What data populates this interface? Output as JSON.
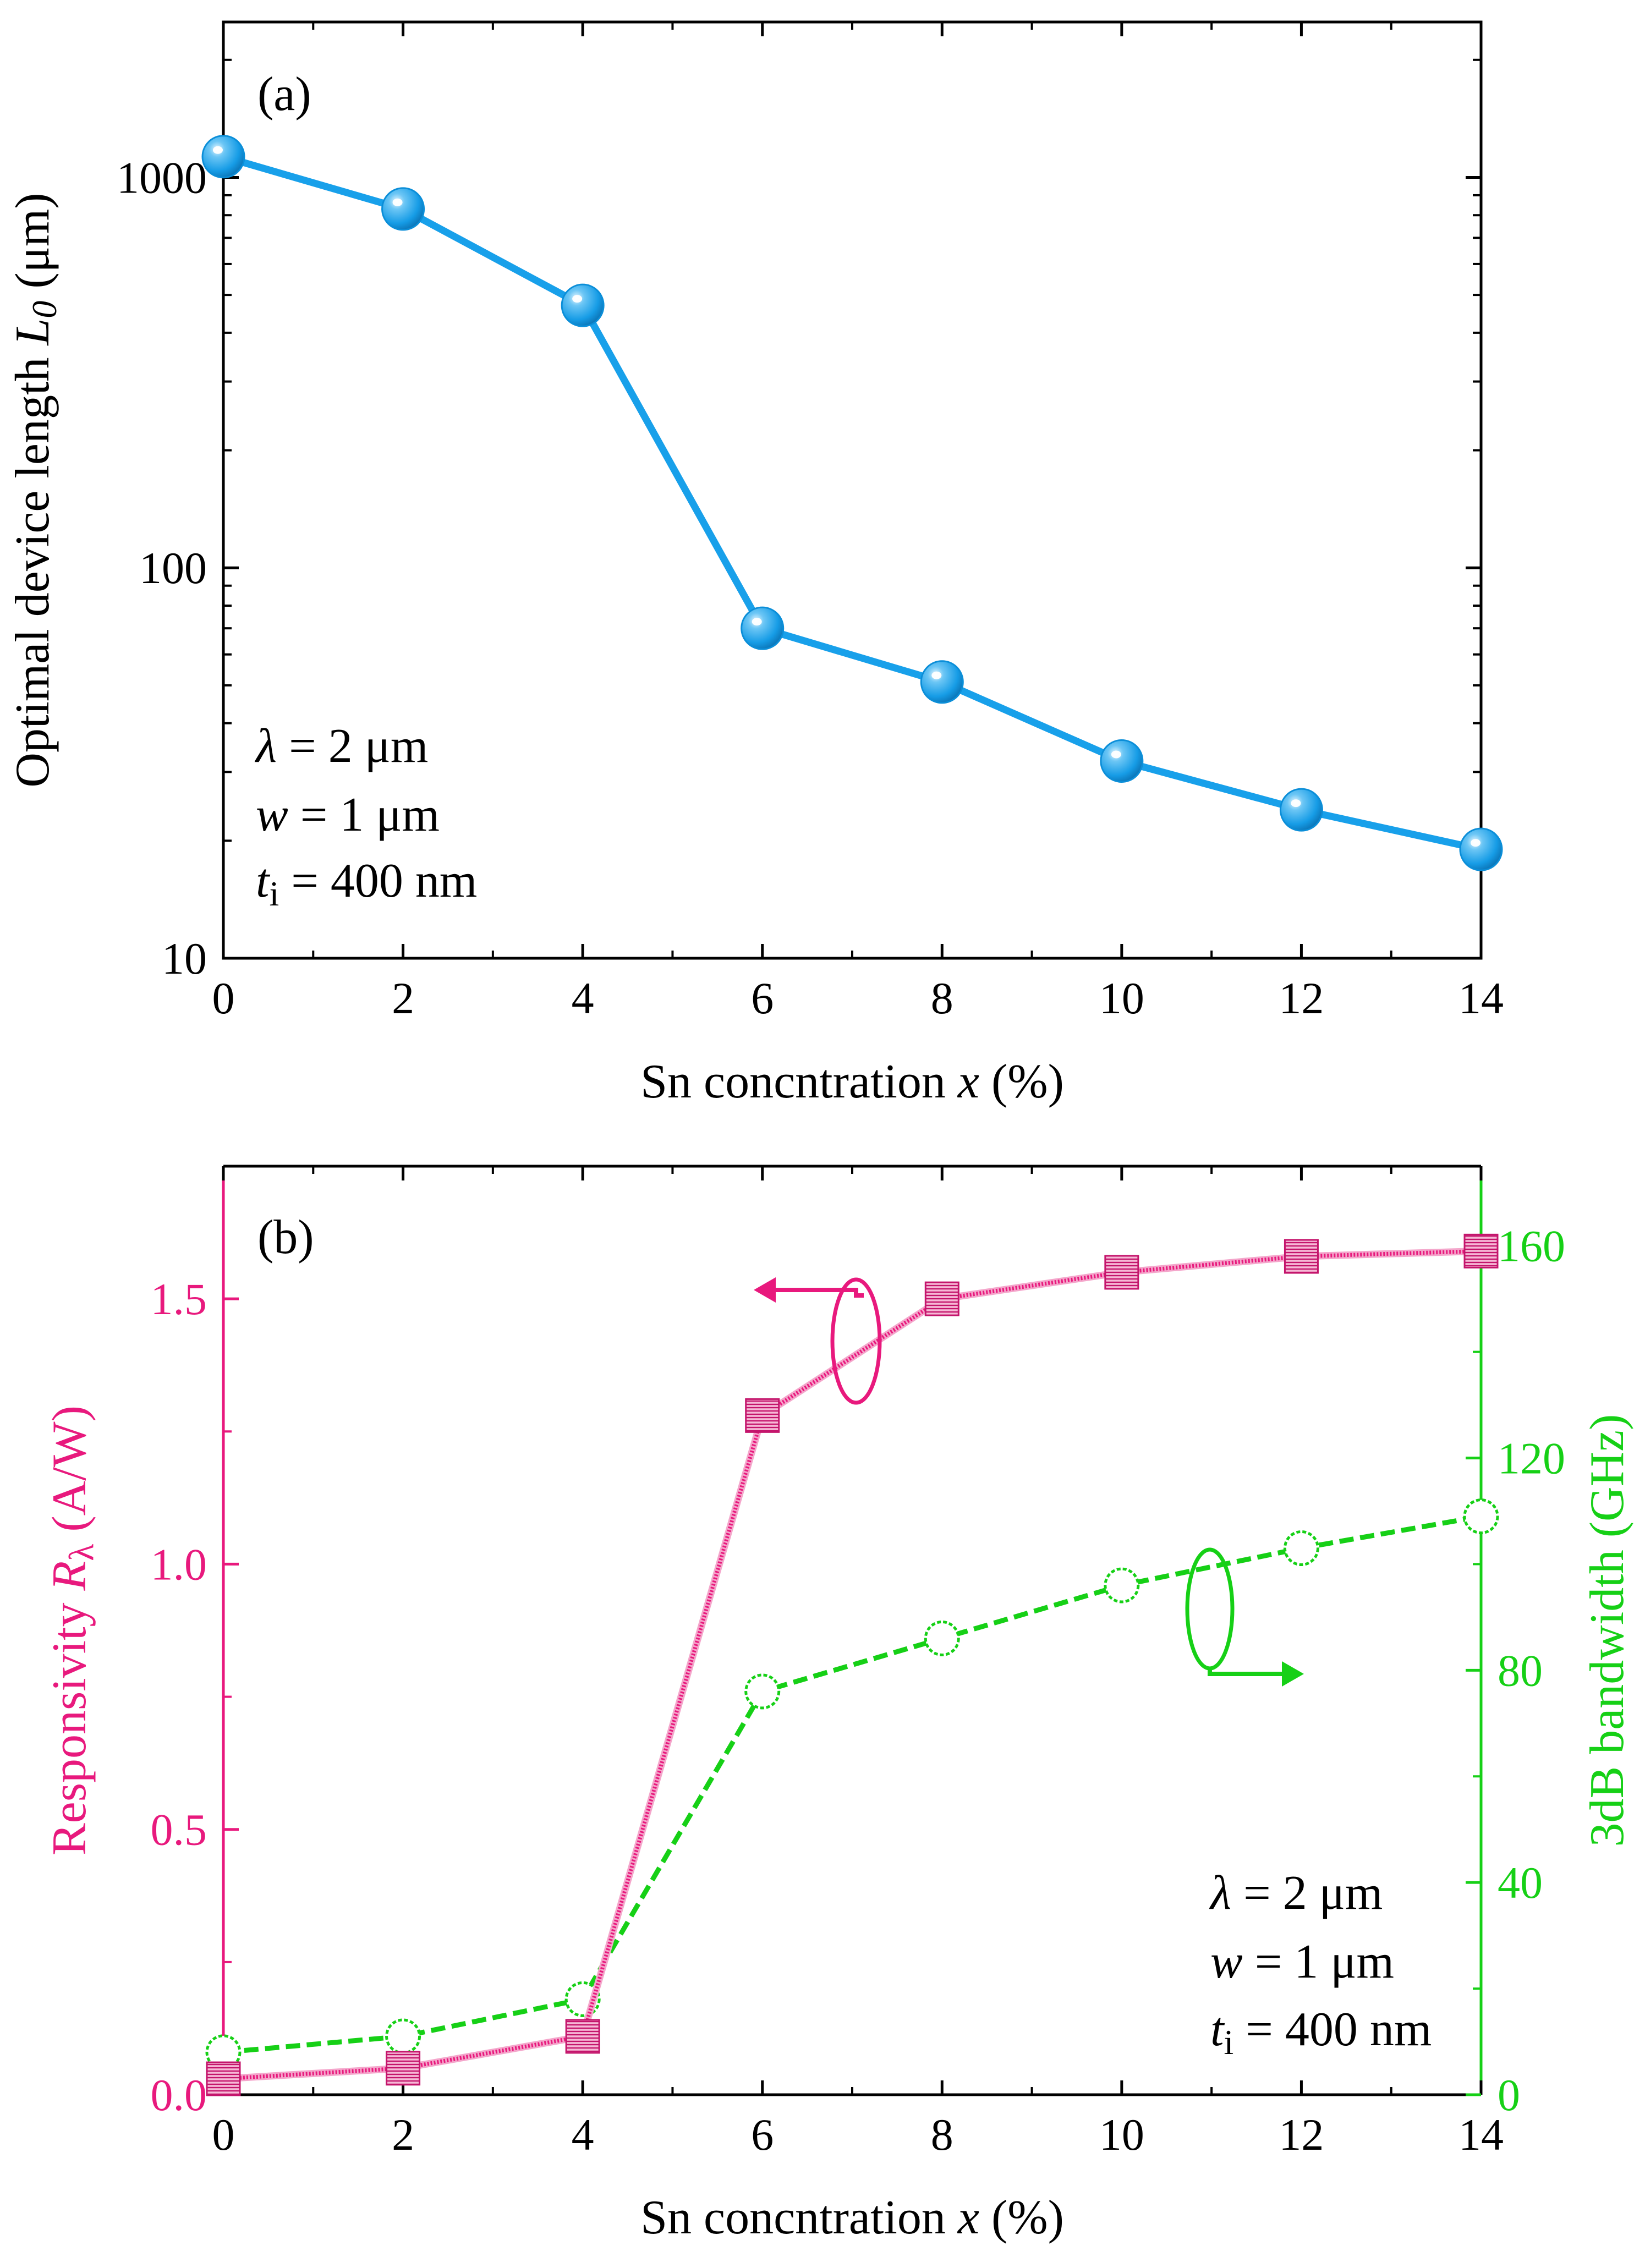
{
  "chart_data": [
    {
      "type": "line",
      "panel_label": "(a)",
      "yscale": "log",
      "xlabel": "Sn concntration x (%)",
      "ylabel": "Optimal device length L0 (μm)",
      "xlim": [
        0,
        14
      ],
      "ylim": [
        10,
        2500
      ],
      "xticks": [
        "0",
        "2",
        "4",
        "6",
        "8",
        "10",
        "12",
        "14"
      ],
      "yticks": [
        "10",
        "100",
        "1000"
      ],
      "series": [
        {
          "name": "L0",
          "color": "#18a0ea",
          "marker": "sphere",
          "x": [
            0,
            2,
            4,
            6,
            8,
            10,
            12,
            14
          ],
          "y": [
            1130,
            830,
            470,
            70,
            51,
            32,
            24,
            19
          ]
        }
      ],
      "annotation": [
        "λ = 2 μm",
        "w = 1 μm",
        "ti = 400 nm"
      ]
    },
    {
      "type": "line",
      "panel_label": "(b)",
      "xlabel": "Sn concntration x (%)",
      "ylabel_left": "Responsivity Rλ (A/W)",
      "ylabel_right": "3dB bandwidth (GHz)",
      "xlim": [
        0,
        14
      ],
      "ylim_left": [
        0,
        1.75
      ],
      "ylim_right": [
        0,
        175
      ],
      "xticks": [
        "0",
        "2",
        "4",
        "6",
        "8",
        "10",
        "12",
        "14"
      ],
      "yticks_left": [
        "0.0",
        "0.5",
        "1.0",
        "1.5"
      ],
      "yticks_right": [
        "0",
        "40",
        "80",
        "120",
        "160"
      ],
      "series": [
        {
          "name": "Responsivity",
          "axis": "left",
          "color": "#e8197d",
          "marker": "square",
          "x": [
            0,
            2,
            4,
            6,
            8,
            10,
            12,
            14
          ],
          "y": [
            0.03,
            0.05,
            0.11,
            1.28,
            1.5,
            1.55,
            1.58,
            1.59
          ]
        },
        {
          "name": "3dB bandwidth",
          "axis": "right",
          "color": "#16d016",
          "marker": "circle-open",
          "x": [
            0,
            2,
            4,
            6,
            8,
            10,
            12,
            14
          ],
          "y": [
            8,
            11,
            18,
            76,
            86,
            96,
            103,
            109
          ]
        }
      ],
      "annotation": [
        "λ = 2 μm",
        "w = 1 μm",
        "ti = 400 nm"
      ]
    }
  ],
  "text": {
    "a": {
      "panel": "(a)",
      "xlabel": "Sn concntration ",
      "xlabel_var": "x",
      "xlabel_unit": " (%)",
      "ylabel": "Optimal device length ",
      "ylabel_var": "L",
      "ylabel_sub": "0",
      "ylabel_unit": " (μm)",
      "ann_l1_var": "λ",
      "ann_l1": " = 2 μm",
      "ann_l2_var": "w",
      "ann_l2": " = 1 μm",
      "ann_l3_var": "t",
      "ann_l3_sub": "i",
      "ann_l3": " = 400 nm"
    },
    "b": {
      "panel": "(b)",
      "xlabel": "Sn concntration ",
      "xlabel_var": "x",
      "xlabel_unit": " (%)",
      "ylabel_left": "Responsivity ",
      "ylabel_left_var": "R",
      "ylabel_left_sub": "λ",
      "ylabel_left_unit": " (A/W)",
      "ylabel_right": "3dB bandwidth (GHz)",
      "ann_l1_var": "λ",
      "ann_l1": " = 2 μm",
      "ann_l2_var": "w",
      "ann_l2": " = 1 μm",
      "ann_l3_var": "t",
      "ann_l3_sub": "i",
      "ann_l3": " = 400 nm"
    }
  }
}
